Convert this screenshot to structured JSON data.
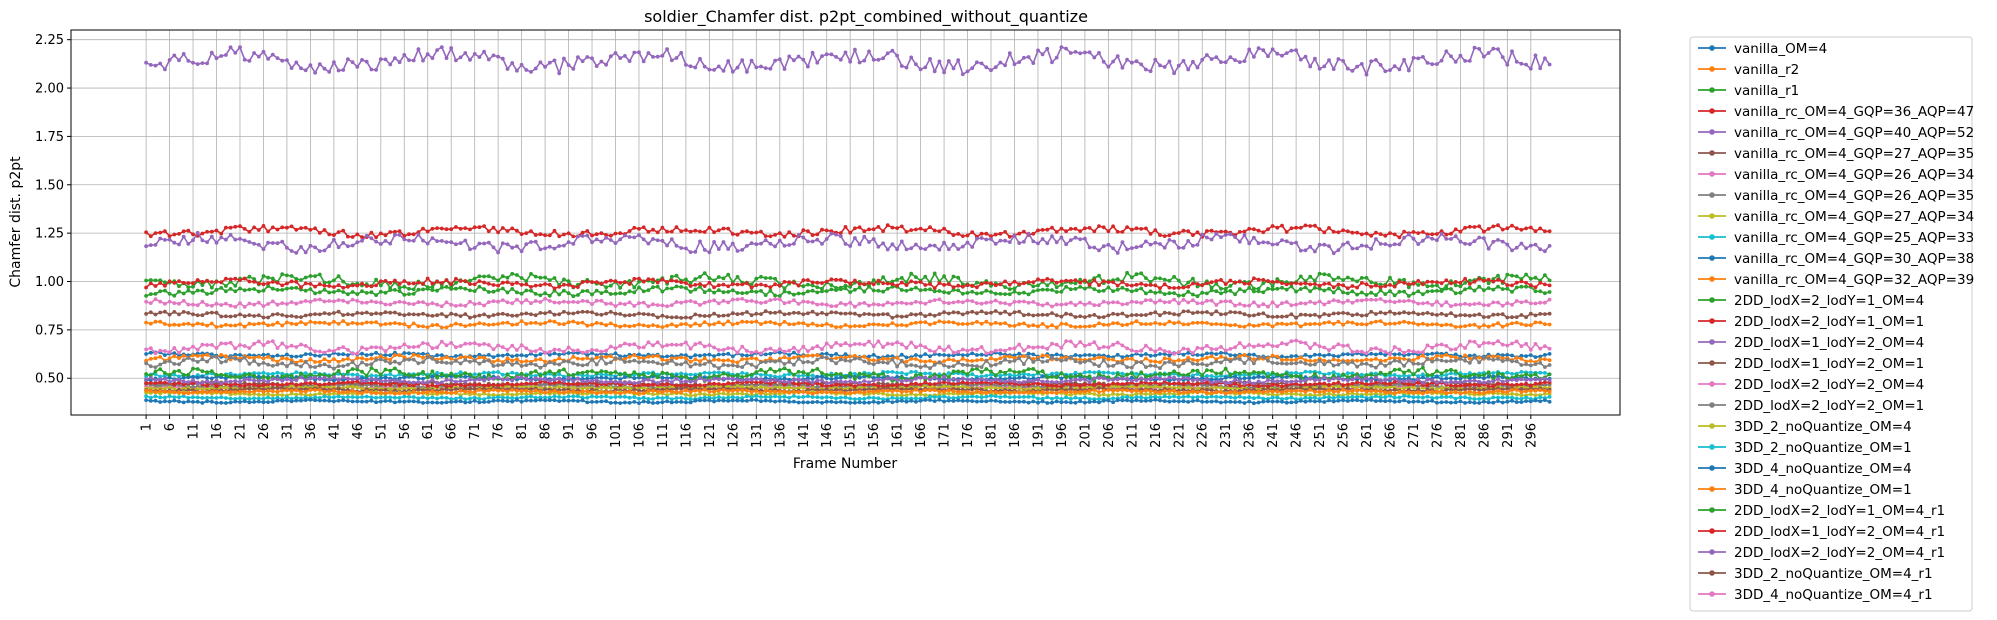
{
  "chart_data": {
    "type": "line",
    "title": "soldier_Chamfer dist. p2pt_combined_without_quantize",
    "xlabel": "Frame Number",
    "ylabel": "Chamfer dist. p2pt",
    "xlim": [
      -15,
      315
    ],
    "ylim": [
      0.31,
      2.3
    ],
    "yticks": [
      0.5,
      0.75,
      1.0,
      1.25,
      1.5,
      1.75,
      2.0,
      2.25
    ],
    "ytick_labels": [
      "0.50",
      "0.75",
      "1.00",
      "1.25",
      "1.50",
      "1.75",
      "2.00",
      "2.25"
    ],
    "xtick_start": 1,
    "xtick_step": 5,
    "xtick_end": 296,
    "frames": {
      "start": 1,
      "end": 300
    },
    "grid": true,
    "legend_position": "outside-right",
    "series": [
      {
        "name": "vanilla_OM=4",
        "color": "#1f77b4",
        "base": 0.62,
        "noise": 0.008,
        "seed": 1
      },
      {
        "name": "vanilla_r2",
        "color": "#ff7f0e",
        "base": 0.78,
        "noise": 0.01,
        "seed": 2
      },
      {
        "name": "vanilla_r1",
        "color": "#2ca02c",
        "base": 1.0,
        "noise": 0.025,
        "seed": 3
      },
      {
        "name": "vanilla_rc_OM=4_GQP=36_AQP=47",
        "color": "#d62728",
        "base": 1.26,
        "noise": 0.018,
        "seed": 4
      },
      {
        "name": "vanilla_rc_OM=4_GQP=40_AQP=52",
        "color": "#9467bd",
        "base": 2.14,
        "noise": 0.04,
        "seed": 5
      },
      {
        "name": "vanilla_rc_OM=4_GQP=27_AQP=35",
        "color": "#8c564b",
        "base": 0.47,
        "noise": 0.006,
        "seed": 6
      },
      {
        "name": "vanilla_rc_OM=4_GQP=26_AQP=34",
        "color": "#e377c2",
        "base": 0.45,
        "noise": 0.006,
        "seed": 7
      },
      {
        "name": "vanilla_rc_OM=4_GQP=26_AQP=35",
        "color": "#7f7f7f",
        "base": 0.46,
        "noise": 0.006,
        "seed": 8
      },
      {
        "name": "vanilla_rc_OM=4_GQP=27_AQP=34",
        "color": "#bcbd22",
        "base": 0.45,
        "noise": 0.006,
        "seed": 9
      },
      {
        "name": "vanilla_rc_OM=4_GQP=25_AQP=33",
        "color": "#17becf",
        "base": 0.52,
        "noise": 0.008,
        "seed": 10
      },
      {
        "name": "vanilla_rc_OM=4_GQP=30_AQP=38",
        "color": "#1f77b4",
        "base": 0.5,
        "noise": 0.007,
        "seed": 11
      },
      {
        "name": "vanilla_rc_OM=4_GQP=32_AQP=39",
        "color": "#ff7f0e",
        "base": 0.6,
        "noise": 0.012,
        "seed": 12
      },
      {
        "name": "2DD_lodX=2_lodY=1_OM=4",
        "color": "#2ca02c",
        "base": 0.52,
        "noise": 0.02,
        "seed": 13
      },
      {
        "name": "2DD_lodX=2_lodY=1_OM=1",
        "color": "#d62728",
        "base": 0.47,
        "noise": 0.008,
        "seed": 14
      },
      {
        "name": "2DD_lodX=1_lodY=2_OM=4",
        "color": "#9467bd",
        "base": 0.49,
        "noise": 0.01,
        "seed": 15
      },
      {
        "name": "2DD_lodX=1_lodY=2_OM=1",
        "color": "#8c564b",
        "base": 0.44,
        "noise": 0.006,
        "seed": 16
      },
      {
        "name": "2DD_lodX=2_lodY=2_OM=4",
        "color": "#e377c2",
        "base": 0.66,
        "noise": 0.02,
        "seed": 17
      },
      {
        "name": "2DD_lodX=2_lodY=2_OM=1",
        "color": "#7f7f7f",
        "base": 0.58,
        "noise": 0.018,
        "seed": 18
      },
      {
        "name": "3DD_2_noQuantize_OM=4",
        "color": "#bcbd22",
        "base": 0.42,
        "noise": 0.006,
        "seed": 19
      },
      {
        "name": "3DD_2_noQuantize_OM=1",
        "color": "#17becf",
        "base": 0.4,
        "noise": 0.005,
        "seed": 20
      },
      {
        "name": "3DD_4_noQuantize_OM=4",
        "color": "#1f77b4",
        "base": 0.38,
        "noise": 0.005,
        "seed": 21
      },
      {
        "name": "3DD_4_noQuantize_OM=1",
        "color": "#ff7f0e",
        "base": 0.43,
        "noise": 0.006,
        "seed": 22
      },
      {
        "name": "2DD_lodX=2_lodY=1_OM=4_r1",
        "color": "#2ca02c",
        "base": 0.95,
        "noise": 0.015,
        "seed": 23
      },
      {
        "name": "2DD_lodX=1_lodY=2_OM=4_r1",
        "color": "#d62728",
        "base": 0.99,
        "noise": 0.015,
        "seed": 24
      },
      {
        "name": "2DD_lodX=2_lodY=2_OM=4_r1",
        "color": "#9467bd",
        "base": 1.2,
        "noise": 0.03,
        "seed": 25
      },
      {
        "name": "3DD_2_noQuantize_OM=4_r1",
        "color": "#8c564b",
        "base": 0.83,
        "noise": 0.01,
        "seed": 26
      },
      {
        "name": "3DD_4_noQuantize_OM=4_r1",
        "color": "#e377c2",
        "base": 0.89,
        "noise": 0.012,
        "seed": 27
      }
    ]
  }
}
